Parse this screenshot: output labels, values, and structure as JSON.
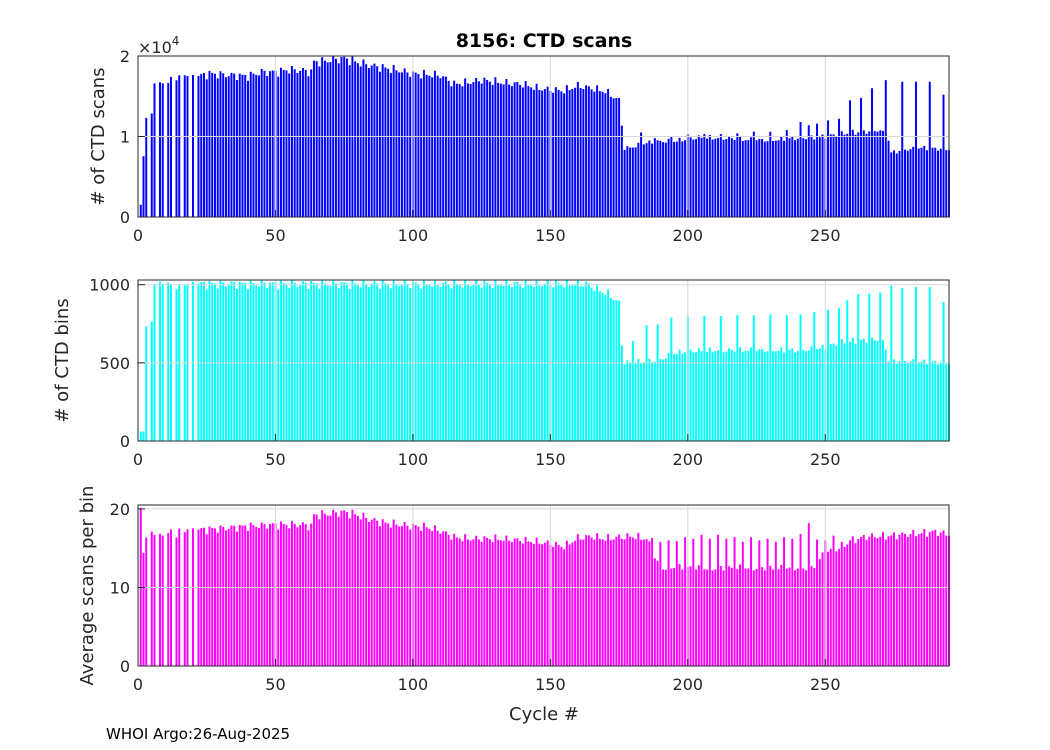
{
  "title": "8156: CTD scans",
  "xlabel": "Cycle #",
  "footer": "WHOI Argo:26-Aug-2025",
  "chart_data": [
    {
      "type": "bar",
      "title": "8156: CTD scans",
      "ylabel": "# of CTD scans",
      "y_multiplier": "×10",
      "y_exponent": "4",
      "color": "#0000ff",
      "xlim": [
        0,
        295
      ],
      "ylim": [
        0,
        2
      ],
      "xticks": [
        0,
        50,
        100,
        150,
        200,
        250
      ],
      "yticks": [
        0,
        1,
        2
      ],
      "anchors": [
        [
          1,
          0.15
        ],
        [
          2,
          0.75
        ],
        [
          3,
          1.27
        ],
        [
          5,
          1.27
        ],
        [
          8,
          1.65
        ],
        [
          11,
          1.65
        ],
        [
          14,
          1.76
        ],
        [
          17,
          1.77
        ],
        [
          20,
          1.74
        ],
        [
          22,
          1.75
        ],
        [
          26,
          1.78
        ],
        [
          30,
          1.77
        ],
        [
          35,
          1.76
        ],
        [
          40,
          1.75
        ],
        [
          45,
          1.8
        ],
        [
          50,
          1.8
        ],
        [
          55,
          1.83
        ],
        [
          60,
          1.82
        ],
        [
          63,
          1.8
        ],
        [
          64,
          1.93
        ],
        [
          67,
          1.93
        ],
        [
          70,
          1.95
        ],
        [
          75,
          1.97
        ],
        [
          80,
          1.92
        ],
        [
          85,
          1.88
        ],
        [
          90,
          1.85
        ],
        [
          95,
          1.82
        ],
        [
          100,
          1.78
        ],
        [
          105,
          1.77
        ],
        [
          110,
          1.76
        ],
        [
          115,
          1.65
        ],
        [
          120,
          1.67
        ],
        [
          125,
          1.7
        ],
        [
          130,
          1.68
        ],
        [
          135,
          1.66
        ],
        [
          140,
          1.65
        ],
        [
          145,
          1.6
        ],
        [
          150,
          1.58
        ],
        [
          155,
          1.57
        ],
        [
          160,
          1.63
        ],
        [
          165,
          1.6
        ],
        [
          170,
          1.56
        ],
        [
          175,
          1.45
        ],
        [
          177,
          0.85
        ],
        [
          180,
          0.87
        ],
        [
          185,
          0.92
        ],
        [
          190,
          0.94
        ],
        [
          195,
          0.94
        ],
        [
          200,
          0.97
        ],
        [
          205,
          0.99
        ],
        [
          210,
          0.98
        ],
        [
          215,
          0.98
        ],
        [
          220,
          0.96
        ],
        [
          225,
          0.96
        ],
        [
          230,
          0.95
        ],
        [
          235,
          0.97
        ],
        [
          240,
          0.98
        ],
        [
          245,
          0.98
        ],
        [
          250,
          1.0
        ],
        [
          255,
          1.03
        ],
        [
          260,
          1.05
        ],
        [
          265,
          1.06
        ],
        [
          270,
          1.08
        ],
        [
          273,
          0.95
        ],
        [
          274,
          0.8
        ],
        [
          280,
          0.84
        ],
        [
          285,
          0.86
        ],
        [
          290,
          0.85
        ],
        [
          294,
          0.84
        ]
      ],
      "gaps": [
        4,
        6,
        7,
        9,
        10,
        12,
        13,
        15,
        16,
        18,
        19,
        21
      ],
      "spikes": [
        [
          6,
          1.66
        ],
        [
          9,
          1.66
        ],
        [
          12,
          1.74
        ],
        [
          15,
          1.76
        ],
        [
          18,
          1.75
        ],
        [
          183,
          1.05
        ],
        [
          188,
          0.98
        ],
        [
          194,
          1.0
        ],
        [
          200,
          1.03
        ],
        [
          206,
          1.03
        ],
        [
          212,
          1.03
        ],
        [
          218,
          1.04
        ],
        [
          224,
          1.06
        ],
        [
          230,
          1.06
        ],
        [
          236,
          1.08
        ],
        [
          241,
          1.18
        ],
        [
          244,
          1.14
        ],
        [
          247,
          1.16
        ],
        [
          251,
          1.2
        ],
        [
          255,
          1.22
        ],
        [
          259,
          1.45
        ],
        [
          263,
          1.48
        ],
        [
          267,
          1.6
        ],
        [
          272,
          1.7
        ],
        [
          278,
          1.68
        ],
        [
          283,
          1.68
        ],
        [
          288,
          1.68
        ],
        [
          293,
          1.52
        ]
      ]
    },
    {
      "type": "bar",
      "ylabel": "# of CTD bins",
      "color": "#00ffff",
      "xlim": [
        0,
        295
      ],
      "ylim": [
        0,
        1030
      ],
      "xticks": [
        0,
        50,
        100,
        150,
        200,
        250
      ],
      "yticks": [
        0,
        500,
        1000
      ],
      "anchors": [
        [
          1,
          60
        ],
        [
          2,
          60
        ],
        [
          3,
          755
        ],
        [
          5,
          755
        ],
        [
          8,
          1005
        ],
        [
          20,
          1005
        ],
        [
          163,
          1005
        ],
        [
          165,
          990
        ],
        [
          168,
          965
        ],
        [
          172,
          930
        ],
        [
          175,
          880
        ],
        [
          176,
          620
        ],
        [
          177,
          500
        ],
        [
          180,
          505
        ],
        [
          185,
          510
        ],
        [
          190,
          520
        ],
        [
          195,
          560
        ],
        [
          200,
          575
        ],
        [
          210,
          580
        ],
        [
          220,
          580
        ],
        [
          230,
          580
        ],
        [
          240,
          580
        ],
        [
          245,
          585
        ],
        [
          250,
          600
        ],
        [
          255,
          630
        ],
        [
          260,
          640
        ],
        [
          265,
          645
        ],
        [
          270,
          650
        ],
        [
          272,
          600
        ],
        [
          273,
          510
        ],
        [
          280,
          510
        ],
        [
          290,
          505
        ],
        [
          294,
          500
        ]
      ],
      "gaps": [
        4,
        6,
        7,
        9,
        10,
        12,
        13,
        15,
        16,
        18,
        19,
        21
      ],
      "spikes": [
        [
          6,
          1005
        ],
        [
          9,
          1005
        ],
        [
          12,
          1005
        ],
        [
          15,
          1005
        ],
        [
          18,
          1005
        ],
        [
          180,
          640
        ],
        [
          185,
          740
        ],
        [
          189,
          745
        ],
        [
          194,
          790
        ],
        [
          200,
          795
        ],
        [
          206,
          800
        ],
        [
          212,
          800
        ],
        [
          218,
          805
        ],
        [
          224,
          805
        ],
        [
          230,
          810
        ],
        [
          236,
          805
        ],
        [
          241,
          810
        ],
        [
          246,
          825
        ],
        [
          251,
          840
        ],
        [
          255,
          850
        ],
        [
          258,
          900
        ],
        [
          262,
          940
        ],
        [
          266,
          945
        ],
        [
          270,
          950
        ],
        [
          274,
          995
        ],
        [
          278,
          980
        ],
        [
          283,
          985
        ],
        [
          288,
          985
        ],
        [
          293,
          890
        ]
      ]
    },
    {
      "type": "bar",
      "ylabel": "Average scans per bin",
      "color": "#ff00ff",
      "xlim": [
        0,
        295
      ],
      "ylim": [
        0,
        20.5
      ],
      "xticks": [
        0,
        50,
        100,
        150,
        200,
        250
      ],
      "yticks": [
        0,
        10,
        20
      ],
      "anchors": [
        [
          1,
          20
        ],
        [
          2,
          14.3
        ],
        [
          3,
          16.9
        ],
        [
          5,
          16.9
        ],
        [
          8,
          16.6
        ],
        [
          20,
          17.3
        ],
        [
          30,
          17.5
        ],
        [
          40,
          17.8
        ],
        [
          50,
          18.0
        ],
        [
          60,
          18.0
        ],
        [
          63,
          17.8
        ],
        [
          64,
          19.2
        ],
        [
          70,
          19.4
        ],
        [
          75,
          19.6
        ],
        [
          80,
          19.2
        ],
        [
          85,
          18.6
        ],
        [
          90,
          18.2
        ],
        [
          95,
          18.0
        ],
        [
          100,
          17.8
        ],
        [
          105,
          17.7
        ],
        [
          110,
          17.2
        ],
        [
          115,
          16.4
        ],
        [
          120,
          16.2
        ],
        [
          130,
          16.2
        ],
        [
          140,
          16.0
        ],
        [
          150,
          15.6
        ],
        [
          155,
          15.2
        ],
        [
          160,
          16.3
        ],
        [
          165,
          16.5
        ],
        [
          170,
          16.2
        ],
        [
          175,
          16.4
        ],
        [
          180,
          16.5
        ],
        [
          185,
          16.2
        ],
        [
          190,
          12.4
        ],
        [
          195,
          12.6
        ],
        [
          200,
          12.5
        ],
        [
          210,
          12.4
        ],
        [
          220,
          12.5
        ],
        [
          230,
          12.4
        ],
        [
          240,
          12.5
        ],
        [
          245,
          12.3
        ],
        [
          250,
          14.5
        ],
        [
          255,
          15.0
        ],
        [
          260,
          16.0
        ],
        [
          265,
          16.5
        ],
        [
          270,
          16.5
        ],
        [
          275,
          16.6
        ],
        [
          280,
          16.8
        ],
        [
          285,
          16.9
        ],
        [
          290,
          17.1
        ],
        [
          294,
          16.8
        ]
      ],
      "gaps": [
        4,
        6,
        7,
        9,
        10,
        12,
        13,
        15,
        16,
        18,
        19,
        21
      ],
      "spikes": [
        [
          6,
          16.7
        ],
        [
          9,
          16.6
        ],
        [
          12,
          17.4
        ],
        [
          15,
          17.5
        ],
        [
          18,
          17.4
        ],
        [
          187,
          16.3
        ],
        [
          190,
          15.8
        ],
        [
          193,
          16.0
        ],
        [
          196,
          15.9
        ],
        [
          199,
          16.4
        ],
        [
          202,
          16.2
        ],
        [
          205,
          16.7
        ],
        [
          208,
          16.2
        ],
        [
          211,
          16.7
        ],
        [
          214,
          16.2
        ],
        [
          217,
          16.4
        ],
        [
          220,
          15.8
        ],
        [
          223,
          16.4
        ],
        [
          226,
          16.0
        ],
        [
          229,
          16.2
        ],
        [
          232,
          15.8
        ],
        [
          235,
          16.4
        ],
        [
          238,
          16.2
        ],
        [
          241,
          16.8
        ],
        [
          244,
          18.2
        ],
        [
          247,
          16.1
        ],
        [
          250,
          16.0
        ],
        [
          253,
          16.6
        ],
        [
          256,
          15.8
        ],
        [
          259,
          16.0
        ]
      ]
    }
  ]
}
